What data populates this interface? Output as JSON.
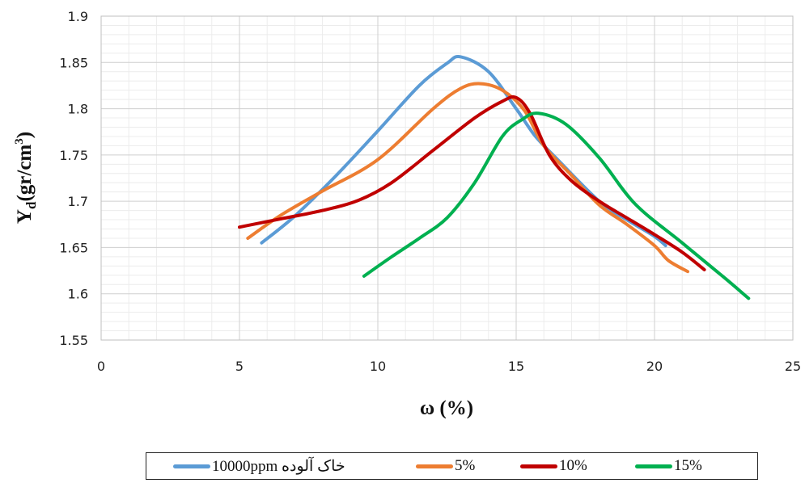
{
  "chart_data": {
    "type": "line",
    "title": "",
    "xlabel": "ω (%)",
    "ylabel": "Y",
    "ylabel_sub": "d",
    "ylabel_unit": "(gr/cm",
    "ylabel_sup": "3",
    "ylabel_close": ")",
    "xlim": [
      0,
      25
    ],
    "ylim": [
      1.55,
      1.9
    ],
    "x_ticks": [
      0,
      5,
      10,
      15,
      20,
      25
    ],
    "y_ticks": [
      1.55,
      1.6,
      1.65,
      1.7,
      1.75,
      1.8,
      1.85,
      1.9
    ],
    "x_tick_labels": [
      "0",
      "5",
      "10",
      "15",
      "20",
      "25"
    ],
    "y_tick_labels": [
      "1.55",
      "1.6",
      "1.65",
      "1.7",
      "1.75",
      "1.8",
      "1.85",
      "1.9"
    ],
    "grid": true,
    "legend_position": "bottom",
    "series": [
      {
        "name": "خاک آلوده 10000ppm",
        "color": "#5B9BD5",
        "points": [
          [
            5.8,
            1.655
          ],
          [
            7.0,
            1.684
          ],
          [
            8.5,
            1.728
          ],
          [
            10.0,
            1.776
          ],
          [
            11.5,
            1.825
          ],
          [
            12.5,
            1.849
          ],
          [
            13.0,
            1.856
          ],
          [
            14.0,
            1.84
          ],
          [
            15.0,
            1.8
          ],
          [
            15.7,
            1.77
          ],
          [
            16.5,
            1.745
          ],
          [
            18.0,
            1.7
          ],
          [
            19.0,
            1.68
          ],
          [
            20.0,
            1.662
          ],
          [
            20.4,
            1.652
          ]
        ]
      },
      {
        "name": "5%",
        "color": "#ED7D31",
        "points": [
          [
            5.3,
            1.66
          ],
          [
            6.5,
            1.685
          ],
          [
            8.0,
            1.711
          ],
          [
            10.0,
            1.745
          ],
          [
            12.0,
            1.8
          ],
          [
            13.0,
            1.822
          ],
          [
            13.7,
            1.827
          ],
          [
            14.5,
            1.82
          ],
          [
            15.3,
            1.798
          ],
          [
            16.0,
            1.76
          ],
          [
            17.0,
            1.728
          ],
          [
            18.0,
            1.696
          ],
          [
            19.0,
            1.675
          ],
          [
            20.0,
            1.652
          ],
          [
            20.5,
            1.636
          ],
          [
            21.2,
            1.624
          ]
        ]
      },
      {
        "name": "10%",
        "color": "#C00000",
        "points": [
          [
            5.0,
            1.672
          ],
          [
            6.5,
            1.681
          ],
          [
            8.0,
            1.69
          ],
          [
            9.3,
            1.701
          ],
          [
            10.5,
            1.72
          ],
          [
            12.0,
            1.755
          ],
          [
            13.5,
            1.79
          ],
          [
            14.5,
            1.808
          ],
          [
            15.0,
            1.812
          ],
          [
            15.5,
            1.795
          ],
          [
            16.2,
            1.75
          ],
          [
            17.0,
            1.722
          ],
          [
            18.0,
            1.7
          ],
          [
            19.0,
            1.682
          ],
          [
            20.0,
            1.664
          ],
          [
            21.0,
            1.645
          ],
          [
            21.8,
            1.626
          ]
        ]
      },
      {
        "name": "15%",
        "color": "#00B050",
        "points": [
          [
            9.5,
            1.619
          ],
          [
            10.5,
            1.64
          ],
          [
            11.5,
            1.66
          ],
          [
            12.5,
            1.682
          ],
          [
            13.5,
            1.72
          ],
          [
            14.5,
            1.77
          ],
          [
            15.2,
            1.788
          ],
          [
            15.8,
            1.795
          ],
          [
            16.8,
            1.783
          ],
          [
            18.0,
            1.747
          ],
          [
            19.3,
            1.697
          ],
          [
            21.0,
            1.655
          ],
          [
            22.5,
            1.618
          ],
          [
            23.4,
            1.595
          ]
        ]
      }
    ]
  }
}
